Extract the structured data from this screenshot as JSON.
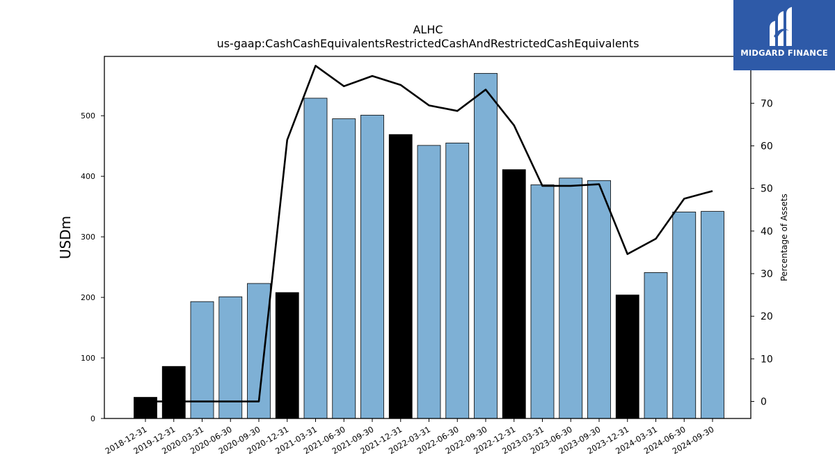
{
  "chart_data": {
    "type": "bar",
    "title": "ALHC",
    "subtitle": "us-gaap:CashCashEquivalentsRestrictedCashAndRestrictedCashEquivalents",
    "ylabel": "USDm",
    "y2label": "Percentage of Assets",
    "ylim": [
      0,
      598
    ],
    "y2lim": [
      -4,
      81
    ],
    "yticks": [
      0,
      100,
      200,
      300,
      400,
      500
    ],
    "y2ticks": [
      0,
      10,
      20,
      30,
      40,
      50,
      60,
      70
    ],
    "categories": [
      "2018-12-31",
      "2019-12-31",
      "2020-03-31",
      "2020-06-30",
      "2020-09-30",
      "2020-12-31",
      "2021-03-31",
      "2021-06-30",
      "2021-09-30",
      "2021-12-31",
      "2022-03-31",
      "2022-06-30",
      "2022-09-30",
      "2022-12-31",
      "2023-03-31",
      "2023-06-30",
      "2023-09-30",
      "2023-12-31",
      "2024-03-31",
      "2024-06-30",
      "2024-09-30"
    ],
    "series": [
      {
        "kind": "bar",
        "axis": "left",
        "values": [
          35,
          86,
          193,
          201,
          223,
          208,
          529,
          495,
          501,
          469,
          451,
          455,
          570,
          411,
          386,
          397,
          393,
          204,
          241,
          341,
          342
        ],
        "colors": [
          "#000000",
          "#000000",
          "#7eb0d5",
          "#7eb0d5",
          "#7eb0d5",
          "#000000",
          "#7eb0d5",
          "#7eb0d5",
          "#7eb0d5",
          "#000000",
          "#7eb0d5",
          "#7eb0d5",
          "#7eb0d5",
          "#000000",
          "#7eb0d5",
          "#7eb0d5",
          "#7eb0d5",
          "#000000",
          "#7eb0d5",
          "#7eb0d5",
          "#7eb0d5"
        ]
      },
      {
        "kind": "line",
        "axis": "right",
        "color": "#000000",
        "values": [
          0,
          0,
          0,
          0,
          0,
          61.4,
          78.8,
          74.0,
          76.4,
          74.3,
          69.5,
          68.2,
          73.2,
          64.8,
          50.6,
          50.6,
          51.0,
          34.6,
          38.2,
          47.6,
          49.4
        ]
      }
    ],
    "grid": false,
    "legend": "none"
  },
  "logo": {
    "text": "MIDGARD FINANCE",
    "background": "#2e5aa8"
  }
}
